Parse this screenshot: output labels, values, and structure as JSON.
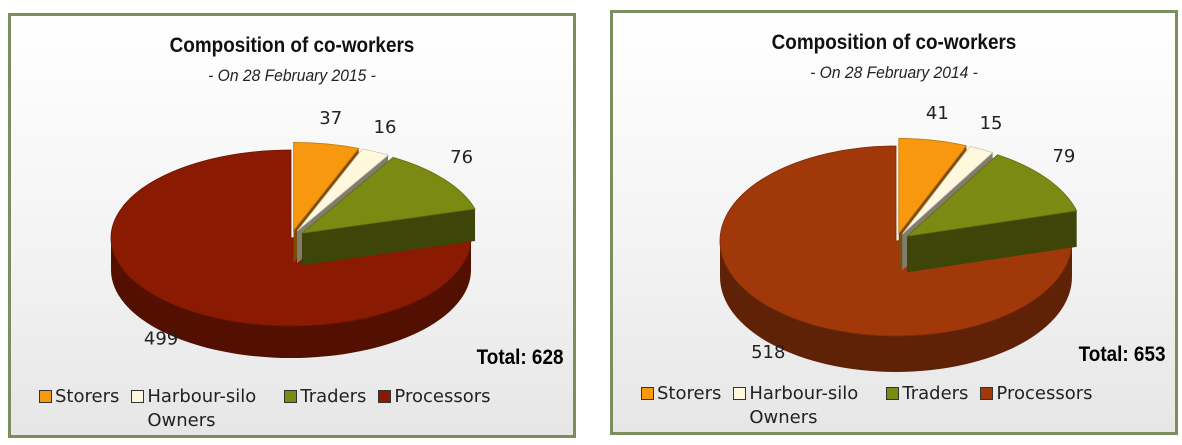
{
  "chart_data": [
    {
      "type": "pie",
      "title": "Composition of co-workers",
      "subtitle": "- On 28 February 2015 -",
      "categories": [
        "Storers",
        "Harbour-silo Owners",
        "Traders",
        "Processors"
      ],
      "values": [
        37,
        16,
        76,
        499
      ],
      "colors": [
        "#f7980f",
        "#fff8dc",
        "#7b8a12",
        "#8a1a02"
      ],
      "annotation": "Total: 628",
      "legend": "bottom"
    },
    {
      "type": "pie",
      "title": "Composition of co-workers",
      "subtitle": "- On 28 February 2014 -",
      "categories": [
        "Storers",
        "Harbour-silo Owners",
        "Traders",
        "Processors"
      ],
      "values": [
        41,
        15,
        79,
        518
      ],
      "colors": [
        "#f7980f",
        "#fff8dc",
        "#7b8a12",
        "#a0380a"
      ],
      "annotation": "Total: 653",
      "legend": "bottom"
    }
  ]
}
